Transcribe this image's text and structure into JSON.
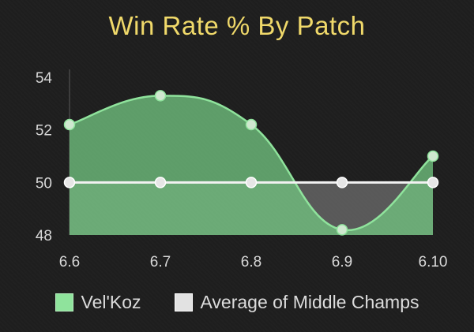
{
  "chart_data": {
    "type": "area",
    "title": "Win Rate % By Patch",
    "xlabel": "",
    "ylabel": "",
    "categories": [
      "6.6",
      "6.7",
      "6.8",
      "6.9",
      "6.10"
    ],
    "ylim": [
      48,
      54
    ],
    "yticks": [
      "48",
      "50",
      "52",
      "54"
    ],
    "grid": false,
    "legend_position": "bottom",
    "series": [
      {
        "name": "Vel'Koz",
        "values": [
          52.2,
          53.3,
          52.2,
          48.2,
          51.0
        ],
        "line_color": "#8fe39c",
        "fill_color": "#71c27f",
        "point_color": "#cfe8cf"
      },
      {
        "name": "Average of Middle Champs",
        "values": [
          50.0,
          50.0,
          50.0,
          50.0,
          50.0
        ],
        "line_color": "#f2f2f2",
        "fill_color": "#8a8a8a",
        "point_color": "#e6e6e6"
      }
    ]
  }
}
